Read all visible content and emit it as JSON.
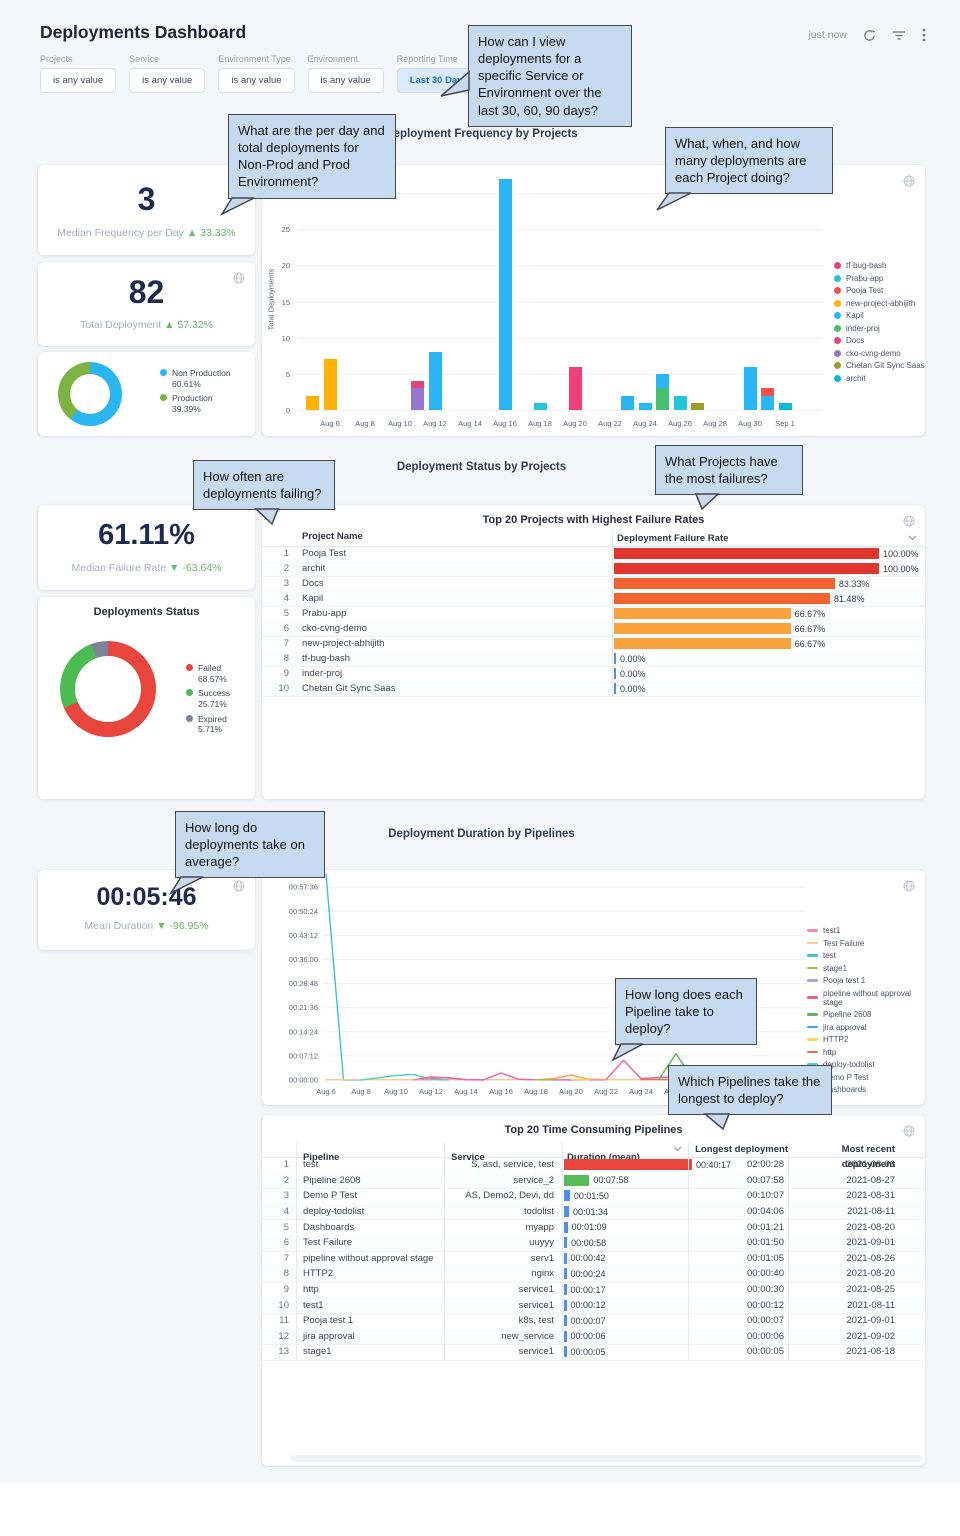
{
  "header": {
    "title": "Deployments Dashboard",
    "updated": "just now"
  },
  "filters": [
    {
      "label": "Projects",
      "value": "is any value",
      "highlighted": false
    },
    {
      "label": "Service",
      "value": "is any value",
      "highlighted": false
    },
    {
      "label": "Environment Type",
      "value": "is any value",
      "highlighted": false
    },
    {
      "label": "Environment",
      "value": "is any value",
      "highlighted": false
    },
    {
      "label": "Reporting Time",
      "value": "Last 30 Days",
      "highlighted": true
    }
  ],
  "callouts": {
    "c1": "How can I view deployments for a specific Service or Environment over the last 30, 60, 90 days?",
    "c2": "What are the per day and total deployments for Non-Prod and Prod Environment?",
    "c3": "What, when, and how many deployments are each Project doing?",
    "c4": "How often are deployments failing?",
    "c5": "What Projects have the most failures?",
    "c6": "How long do deployments take on average?",
    "c7": "How long does each Pipeline take to deploy?",
    "c8": "Which Pipelines take the longest to deploy?"
  },
  "sections": {
    "frequency": {
      "title": "Deployment Frequency by Projects",
      "median_kpi": {
        "value": "3",
        "label": "Median Frequency per Day",
        "delta": "▲ 33.33%"
      },
      "total_kpi": {
        "value": "82",
        "label": "Total Deployment",
        "delta": "▲ 57.32%"
      }
    },
    "status": {
      "title": "Deployment Status by Projects",
      "failure_kpi": {
        "value": "61.11%",
        "label": "Median Failure Rate",
        "delta": "▼ -63.64%"
      }
    },
    "duration": {
      "title": "Deployment Duration by Pipelines",
      "mean_kpi": {
        "value": "00:05:46",
        "label": "Mean Duration",
        "delta": "▼ -96.95%"
      }
    }
  },
  "chart_data": [
    {
      "id": "deployment-frequency-bars",
      "type": "bar",
      "stacked": true,
      "title": "Deployment Frequency by Projects",
      "ylabel": "Total Deployments",
      "ylim": [
        0,
        32
      ],
      "yticks": [
        0,
        5,
        10,
        15,
        20,
        25,
        30
      ],
      "xticks": [
        "Aug 6",
        "Aug 8",
        "Aug 10",
        "Aug 12",
        "Aug 14",
        "Aug 16",
        "Aug 18",
        "Aug 20",
        "Aug 22",
        "Aug 24",
        "Aug 26",
        "Aug 28",
        "Aug 30",
        "Sep 1"
      ],
      "legend": [
        {
          "name": "tf-bug-bash",
          "color": "#ec407a"
        },
        {
          "name": "Prabu-app",
          "color": "#26c6da"
        },
        {
          "name": "Pooja Test",
          "color": "#ef5350"
        },
        {
          "name": "new-project-abhijith",
          "color": "#ffb300"
        },
        {
          "name": "Kapil",
          "color": "#29b6f6"
        },
        {
          "name": "inder-proj",
          "color": "#43c16f"
        },
        {
          "name": "Docs",
          "color": "#f03e7d"
        },
        {
          "name": "cko-cvng-demo",
          "color": "#9575cd"
        },
        {
          "name": "Chetan Git Sync Saas",
          "color": "#9e9d24"
        },
        {
          "name": "archit",
          "color": "#00bcd4"
        }
      ],
      "bars": [
        {
          "day": 0,
          "label": "Aug 5",
          "segments": [
            [
              "new-project-abhijith",
              2
            ]
          ]
        },
        {
          "day": 1,
          "label": "Aug 6",
          "segments": [
            [
              "new-project-abhijith",
              7
            ]
          ]
        },
        {
          "day": 6,
          "label": "Aug 11",
          "segments": [
            [
              "cko-cvng-demo",
              3
            ],
            [
              "tf-bug-bash",
              1
            ]
          ]
        },
        {
          "day": 7,
          "label": "Aug 12",
          "segments": [
            [
              "Kapil",
              8
            ]
          ]
        },
        {
          "day": 11,
          "label": "Aug 16",
          "segments": [
            [
              "Kapil",
              32
            ]
          ]
        },
        {
          "day": 13,
          "label": "Aug 18",
          "segments": [
            [
              "Prabu-app",
              1
            ]
          ]
        },
        {
          "day": 15,
          "label": "Aug 20",
          "segments": [
            [
              "Docs",
              6
            ]
          ]
        },
        {
          "day": 18,
          "label": "Aug 23",
          "segments": [
            [
              "Kapil",
              2
            ]
          ]
        },
        {
          "day": 19,
          "label": "Aug 24",
          "segments": [
            [
              "Kapil",
              1
            ]
          ]
        },
        {
          "day": 20,
          "label": "Aug 25",
          "segments": [
            [
              "inder-proj",
              3
            ],
            [
              "Kapil",
              2
            ]
          ]
        },
        {
          "day": 21,
          "label": "Aug 26",
          "segments": [
            [
              "Prabu-app",
              2
            ]
          ]
        },
        {
          "day": 22,
          "label": "Aug 27",
          "segments": [
            [
              "Chetan Git Sync Saas",
              1
            ]
          ]
        },
        {
          "day": 25,
          "label": "Aug 30",
          "segments": [
            [
              "Kapil",
              6
            ]
          ]
        },
        {
          "day": 26,
          "label": "Aug 31",
          "segments": [
            [
              "Kapil",
              2
            ],
            [
              "Pooja Test",
              1
            ]
          ]
        },
        {
          "day": 27,
          "label": "Sep 1",
          "segments": [
            [
              "archit",
              1
            ]
          ]
        }
      ]
    },
    {
      "id": "environment-split-donut",
      "type": "pie",
      "slices": [
        {
          "label": "Non Production",
          "value": 60.61,
          "display": "Non Production 60.61%",
          "color": "#29b5f0"
        },
        {
          "label": "Production",
          "value": 39.39,
          "display": "Production 39.39%",
          "color": "#7cb342"
        }
      ]
    },
    {
      "id": "deployments-status-donut",
      "type": "pie",
      "title": "Deployments Status",
      "slices": [
        {
          "label": "Failed",
          "value": 68.57,
          "display": "Failed 68.57%",
          "color": "#e8453c"
        },
        {
          "label": "Success",
          "value": 25.71,
          "display": "Success 25.71%",
          "color": "#4cbb51"
        },
        {
          "label": "Expired",
          "value": 5.71,
          "display": "Expired 5.71%",
          "color": "#7d8499"
        }
      ]
    },
    {
      "id": "failure-rate-table",
      "type": "table",
      "title": "Top 20 Projects with Highest Failure Rates",
      "columns": [
        "Project Name",
        "Deployment Failure Rate"
      ],
      "rows": [
        {
          "rank": 1,
          "name": "Pooja Test",
          "rate": 100.0,
          "display": "100.00%",
          "color": "#e0362c"
        },
        {
          "rank": 2,
          "name": "archit",
          "rate": 100.0,
          "display": "100.00%",
          "color": "#e0362c"
        },
        {
          "rank": 3,
          "name": "Docs",
          "rate": 83.33,
          "display": "83.33%",
          "color": "#f2622f"
        },
        {
          "rank": 4,
          "name": "Kapil",
          "rate": 81.48,
          "display": "81.48%",
          "color": "#f2622f"
        },
        {
          "rank": 5,
          "name": "Prabu-app",
          "rate": 66.67,
          "display": "66.67%",
          "color": "#f9a13a"
        },
        {
          "rank": 6,
          "name": "cko-cvng-demo",
          "rate": 66.67,
          "display": "66.67%",
          "color": "#f9a13a"
        },
        {
          "rank": 7,
          "name": "new-project-abhijith",
          "rate": 66.67,
          "display": "66.67%",
          "color": "#f9a13a"
        },
        {
          "rank": 8,
          "name": "tf-bug-bash",
          "rate": 0.0,
          "display": "0.00%",
          "color": "#4e8df2"
        },
        {
          "rank": 9,
          "name": "inder-proj",
          "rate": 0.0,
          "display": "0.00%",
          "color": "#4e8df2"
        },
        {
          "rank": 10,
          "name": "Chetan Git Sync Saas",
          "rate": 0.0,
          "display": "0.00%",
          "color": "#4e8df2"
        }
      ]
    },
    {
      "id": "duration-lines",
      "type": "line",
      "title": "Deployment Duration by Pipelines",
      "yticks": [
        "00:57:36",
        "00:50:24",
        "00:43:12",
        "00:36:00",
        "00:28:48",
        "00:21:36",
        "00:14:24",
        "00:07:12",
        "00:00:00"
      ],
      "ytick_seconds": [
        3456,
        3024,
        2592,
        2160,
        1728,
        1296,
        864,
        432,
        0
      ],
      "ylim_seconds": [
        0,
        3760
      ],
      "xticks": [
        "Aug 6",
        "Aug 8",
        "Aug 10",
        "Aug 12",
        "Aug 14",
        "Aug 16",
        "Aug 18",
        "Aug 20",
        "Aug 22",
        "Aug 24",
        "Aug 26",
        "Aug 28",
        "Aug 30",
        "Sep 1"
      ],
      "legend": [
        {
          "name": "test1",
          "color": "#f48caa"
        },
        {
          "name": "Test Failure",
          "color": "#ffc687"
        },
        {
          "name": "test",
          "color": "#3cc2d4"
        },
        {
          "name": "stage1",
          "color": "#8bc34a"
        },
        {
          "name": "Pooja test 1",
          "color": "#b39ddb"
        },
        {
          "name": "pipeline without approval stage",
          "color": "#f05c9a"
        },
        {
          "name": "Pipeline 2608",
          "color": "#57bb5a"
        },
        {
          "name": "jira approval",
          "color": "#42a5f5"
        },
        {
          "name": "HTTP2",
          "color": "#ffd54f"
        },
        {
          "name": "http",
          "color": "#ef7350"
        },
        {
          "name": "deploy-todolist",
          "color": "#4dd0c4"
        },
        {
          "name": "Demo P Test",
          "color": "#f0609e"
        },
        {
          "name": "Dashboards",
          "color": "#ff9d52"
        }
      ],
      "series": [
        {
          "name": "test",
          "color": "#3cc2d4",
          "points": [
            [
              1,
              3690
            ],
            [
              2,
              0
            ],
            [
              3,
              0
            ]
          ]
        },
        {
          "name": "Test Failure",
          "color": "#ffc687",
          "points": [
            [
              1,
              6
            ],
            [
              28,
              6
            ]
          ]
        },
        {
          "name": "deploy-todolist",
          "color": "#4dd0c4",
          "points": [
            [
              3,
              0
            ],
            [
              5,
              80
            ],
            [
              6,
              100
            ],
            [
              7,
              10
            ],
            [
              8,
              0
            ]
          ]
        },
        {
          "name": "pipeline without approval stage",
          "color": "#f05c9a",
          "points": [
            [
              7,
              30
            ],
            [
              8,
              42
            ],
            [
              9,
              6
            ],
            [
              10,
              2
            ]
          ]
        },
        {
          "name": "Demo P Test",
          "color": "#f0609e",
          "points": [
            [
              6,
              0
            ],
            [
              7,
              55
            ],
            [
              8,
              35
            ],
            [
              9,
              8
            ],
            [
              10,
              2
            ],
            [
              11,
              125
            ],
            [
              12,
              15
            ],
            [
              13,
              4
            ],
            [
              15,
              2
            ],
            [
              16,
              4
            ],
            [
              17,
              2
            ],
            [
              18,
              355
            ],
            [
              19,
              25
            ],
            [
              20,
              45
            ],
            [
              21,
              55
            ],
            [
              22,
              45
            ],
            [
              23,
              40
            ]
          ]
        },
        {
          "name": "Dashboards",
          "color": "#ff9d52",
          "points": [
            [
              13,
              4
            ],
            [
              14,
              25
            ],
            [
              15,
              88
            ],
            [
              16,
              12
            ],
            [
              17,
              4
            ]
          ]
        },
        {
          "name": "Pipeline 2608",
          "color": "#57bb5a",
          "points": [
            [
              20,
              4
            ],
            [
              21,
              470
            ],
            [
              22,
              4
            ]
          ]
        },
        {
          "name": "HTTP2",
          "color": "#ffd54f",
          "points": [
            [
              15,
              10
            ],
            [
              16,
              4
            ]
          ]
        },
        {
          "name": "http",
          "color": "#ef7350",
          "points": [
            [
              19,
              6
            ],
            [
              20,
              10
            ],
            [
              21,
              4
            ]
          ]
        },
        {
          "name": "test1",
          "color": "#f48caa",
          "points": [
            [
              6,
              8
            ],
            [
              7,
              2
            ]
          ]
        },
        {
          "name": "stage1",
          "color": "#8bc34a",
          "points": [
            [
              13,
              3
            ],
            [
              14,
              2
            ]
          ]
        },
        {
          "name": "Pooja test 1",
          "color": "#b39ddb",
          "points": [
            [
              26,
              3
            ],
            [
              27,
              3
            ]
          ]
        },
        {
          "name": "jira approval",
          "color": "#42a5f5",
          "points": [
            [
              27,
              2
            ],
            [
              28,
              2
            ]
          ]
        }
      ]
    },
    {
      "id": "time-consuming-pipelines-table",
      "type": "table",
      "title": "Top 20 Time Consuming Pipelines",
      "columns": [
        "Pipeline",
        "Service",
        "Duration (mean)",
        "Longest deployment",
        "Most recent deployment"
      ],
      "max_duration_seconds": 2417,
      "rows": [
        {
          "rank": 1,
          "pipeline": "test",
          "service": "S, asd, service, test",
          "duration": "00:40:17",
          "seconds": 2417,
          "bar_color": "#e8453c",
          "longest": "02:00:28",
          "recent": "2021-08-06"
        },
        {
          "rank": 2,
          "pipeline": "Pipeline 2608",
          "service": "service_2",
          "duration": "00:07:58",
          "seconds": 478,
          "bar_color": "#57bb5a",
          "longest": "00:07:58",
          "recent": "2021-08-27"
        },
        {
          "rank": 3,
          "pipeline": "Demo P Test",
          "service": "AS, Demo2, Devi, dd",
          "duration": "00:01:50",
          "seconds": 110,
          "bar_color": "#4e8df2",
          "longest": "00:10:07",
          "recent": "2021-08-31"
        },
        {
          "rank": 4,
          "pipeline": "deploy-todolist",
          "service": "todolist",
          "duration": "00:01:34",
          "seconds": 94,
          "bar_color": "#4e8df2",
          "longest": "00:04:06",
          "recent": "2021-08-11"
        },
        {
          "rank": 5,
          "pipeline": "Dashboards",
          "service": "myapp",
          "duration": "00:01:09",
          "seconds": 69,
          "bar_color": "#4e8df2",
          "longest": "00:01:21",
          "recent": "2021-08-20"
        },
        {
          "rank": 6,
          "pipeline": "Test Failure",
          "service": "uuyyy",
          "duration": "00:00:58",
          "seconds": 58,
          "bar_color": "#4e8df2",
          "longest": "00:01:50",
          "recent": "2021-09-01"
        },
        {
          "rank": 7,
          "pipeline": "pipeline without approval stage",
          "service": "serv1",
          "duration": "00:00:42",
          "seconds": 42,
          "bar_color": "#4e8df2",
          "longest": "00:01:05",
          "recent": "2021-08-26"
        },
        {
          "rank": 8,
          "pipeline": "HTTP2",
          "service": "nginx",
          "duration": "00:00:24",
          "seconds": 24,
          "bar_color": "#4e8df2",
          "longest": "00:00:40",
          "recent": "2021-08-20"
        },
        {
          "rank": 9,
          "pipeline": "http",
          "service": "service1",
          "duration": "00:00:17",
          "seconds": 17,
          "bar_color": "#4e8df2",
          "longest": "00:00:30",
          "recent": "2021-08-25"
        },
        {
          "rank": 10,
          "pipeline": "test1",
          "service": "service1",
          "duration": "00:00:12",
          "seconds": 12,
          "bar_color": "#4e8df2",
          "longest": "00:00:12",
          "recent": "2021-08-11"
        },
        {
          "rank": 11,
          "pipeline": "Pooja test 1",
          "service": "k8s, test",
          "duration": "00:00:07",
          "seconds": 7,
          "bar_color": "#4e8df2",
          "longest": "00:00:07",
          "recent": "2021-09-01"
        },
        {
          "rank": 12,
          "pipeline": "jira approval",
          "service": "new_service",
          "duration": "00:00:06",
          "seconds": 6,
          "bar_color": "#4e8df2",
          "longest": "00:00:06",
          "recent": "2021-09-02"
        },
        {
          "rank": 13,
          "pipeline": "stage1",
          "service": "service1",
          "duration": "00:00:05",
          "seconds": 5,
          "bar_color": "#4e8df2",
          "longest": "00:00:05",
          "recent": "2021-08-18"
        }
      ]
    }
  ]
}
